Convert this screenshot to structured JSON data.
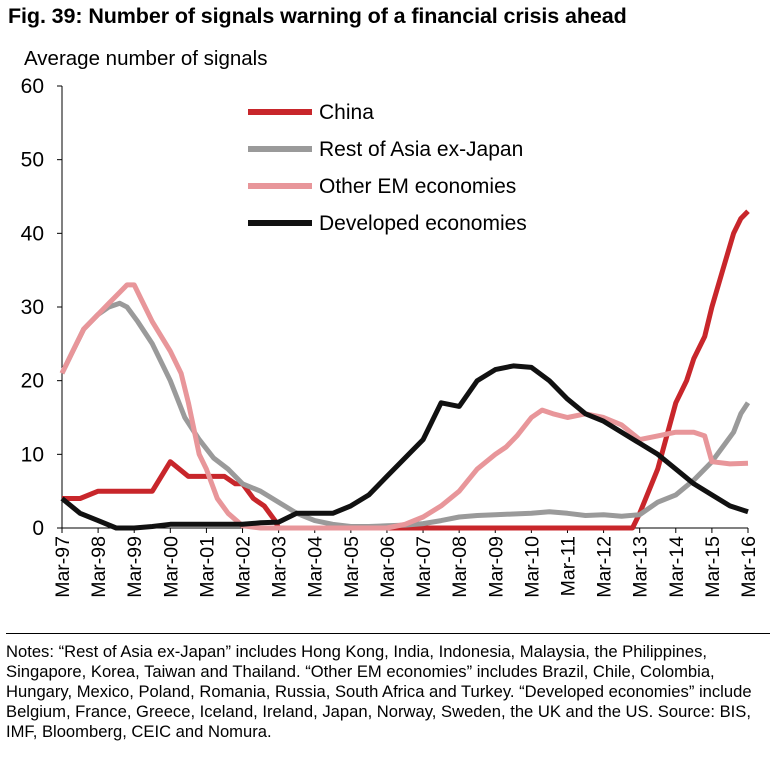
{
  "title": "Fig. 39: Number of signals warning of a financial crisis ahead",
  "notes": "Notes: “Rest of Asia ex-Japan” includes Hong Kong, India, Indonesia, Malaysia, the Philippines, Singapore, Korea, Taiwan and Thailand. “Other EM economies” includes Brazil, Chile, Colombia, Hungary, Mexico, Poland, Romania, Russia, South Africa and Turkey. “Developed economies” include Belgium, France, Greece, Iceland, Ireland, Japan, Norway, Sweden, the UK and the US. Source: BIS, IMF, Bloomberg, CEIC and Nomura.",
  "chart_data": {
    "type": "line",
    "title": "Fig. 39: Number of signals warning of a financial crisis ahead",
    "ylabel": "Average number of signals",
    "xlabel": "",
    "ylim": [
      0,
      60
    ],
    "yticks": [
      0,
      10,
      20,
      30,
      40,
      50,
      60
    ],
    "xlim": [
      1997,
      2016
    ],
    "categories": [
      "Mar-97",
      "Mar-98",
      "Mar-99",
      "Mar-00",
      "Mar-01",
      "Mar-02",
      "Mar-03",
      "Mar-04",
      "Mar-05",
      "Mar-06",
      "Mar-07",
      "Mar-08",
      "Mar-09",
      "Mar-10",
      "Mar-11",
      "Mar-12",
      "Mar-13",
      "Mar-14",
      "Mar-15",
      "Mar-16"
    ],
    "legend_position": "top-center",
    "series": [
      {
        "name": "China",
        "color": "#c8262b",
        "points": [
          [
            1997,
            4
          ],
          [
            1997.5,
            4
          ],
          [
            1998,
            5
          ],
          [
            1999,
            5
          ],
          [
            1999.5,
            5
          ],
          [
            2000,
            9
          ],
          [
            2000.5,
            7
          ],
          [
            2001,
            7
          ],
          [
            2001.5,
            7
          ],
          [
            2001.8,
            6
          ],
          [
            2002,
            6
          ],
          [
            2002.3,
            4
          ],
          [
            2002.6,
            3
          ],
          [
            2002.9,
            1
          ],
          [
            2003,
            0
          ],
          [
            2012.8,
            0
          ],
          [
            2013,
            2
          ],
          [
            2013.5,
            8
          ],
          [
            2014,
            17
          ],
          [
            2014.3,
            20
          ],
          [
            2014.5,
            23
          ],
          [
            2014.8,
            26
          ],
          [
            2015,
            30
          ],
          [
            2015.3,
            35
          ],
          [
            2015.6,
            40
          ],
          [
            2015.8,
            42
          ],
          [
            2016,
            43
          ]
        ]
      },
      {
        "name": "Rest of Asia ex-Japan",
        "color": "#9a9a9a",
        "points": [
          [
            1997,
            21
          ],
          [
            1997.3,
            24
          ],
          [
            1997.6,
            27
          ],
          [
            1998,
            29
          ],
          [
            1998.3,
            30
          ],
          [
            1998.6,
            30.5
          ],
          [
            1998.8,
            30
          ],
          [
            1999.1,
            28
          ],
          [
            1999.5,
            25
          ],
          [
            2000,
            20
          ],
          [
            2000.4,
            15
          ],
          [
            2000.8,
            12
          ],
          [
            2001.2,
            9.5
          ],
          [
            2001.6,
            8
          ],
          [
            2002,
            6
          ],
          [
            2002.5,
            5
          ],
          [
            2003,
            3.5
          ],
          [
            2003.5,
            2
          ],
          [
            2004,
            1
          ],
          [
            2004.5,
            0.5
          ],
          [
            2005,
            0.2
          ],
          [
            2005.5,
            0.2
          ],
          [
            2006,
            0.3
          ],
          [
            2006.5,
            0.4
          ],
          [
            2007,
            0.6
          ],
          [
            2007.5,
            1
          ],
          [
            2008,
            1.5
          ],
          [
            2008.5,
            1.7
          ],
          [
            2009,
            1.8
          ],
          [
            2009.5,
            1.9
          ],
          [
            2010,
            2
          ],
          [
            2010.5,
            2.2
          ],
          [
            2011,
            2
          ],
          [
            2011.5,
            1.7
          ],
          [
            2012,
            1.8
          ],
          [
            2012.5,
            1.6
          ],
          [
            2013,
            1.8
          ],
          [
            2013.5,
            3.5
          ],
          [
            2014,
            4.5
          ],
          [
            2014.5,
            6.5
          ],
          [
            2015,
            9
          ],
          [
            2015.3,
            11
          ],
          [
            2015.6,
            13
          ],
          [
            2015.8,
            15.5
          ],
          [
            2016,
            17
          ]
        ]
      },
      {
        "name": "Other EM economies",
        "color": "#e8969a",
        "points": [
          [
            1997,
            21
          ],
          [
            1997.3,
            24
          ],
          [
            1997.6,
            27
          ],
          [
            1998,
            29
          ],
          [
            1998.3,
            30.5
          ],
          [
            1998.6,
            32
          ],
          [
            1998.8,
            33
          ],
          [
            1999,
            33
          ],
          [
            1999.2,
            31
          ],
          [
            1999.5,
            28
          ],
          [
            2000,
            24
          ],
          [
            2000.3,
            21
          ],
          [
            2000.5,
            17
          ],
          [
            2000.8,
            10
          ],
          [
            2001,
            8
          ],
          [
            2001.3,
            4
          ],
          [
            2001.6,
            2
          ],
          [
            2002,
            0.3
          ],
          [
            2002.5,
            0
          ],
          [
            2006,
            0
          ],
          [
            2006.5,
            0.5
          ],
          [
            2007,
            1.5
          ],
          [
            2007.5,
            3
          ],
          [
            2008,
            5
          ],
          [
            2008.5,
            8
          ],
          [
            2009,
            10
          ],
          [
            2009.3,
            11
          ],
          [
            2009.6,
            12.5
          ],
          [
            2010,
            15
          ],
          [
            2010.3,
            16
          ],
          [
            2010.6,
            15.5
          ],
          [
            2011,
            15
          ],
          [
            2011.5,
            15.5
          ],
          [
            2012,
            15
          ],
          [
            2012.5,
            14
          ],
          [
            2013,
            12
          ],
          [
            2013.5,
            12.5
          ],
          [
            2014,
            13
          ],
          [
            2014.5,
            13
          ],
          [
            2014.8,
            12.5
          ],
          [
            2015,
            9
          ],
          [
            2015.5,
            8.7
          ],
          [
            2016,
            8.8
          ]
        ]
      },
      {
        "name": "Developed economies",
        "color": "#111111",
        "points": [
          [
            1997,
            4
          ],
          [
            1997.5,
            2
          ],
          [
            1998,
            1
          ],
          [
            1998.5,
            0
          ],
          [
            1999,
            0
          ],
          [
            1999.5,
            0.2
          ],
          [
            2000,
            0.5
          ],
          [
            2001,
            0.5
          ],
          [
            2002,
            0.5
          ],
          [
            2002.5,
            0.7
          ],
          [
            2003,
            0.8
          ],
          [
            2003.5,
            2
          ],
          [
            2004,
            2
          ],
          [
            2004.5,
            2
          ],
          [
            2005,
            3
          ],
          [
            2005.5,
            4.5
          ],
          [
            2006,
            7
          ],
          [
            2006.5,
            9.5
          ],
          [
            2007,
            12
          ],
          [
            2007.5,
            17
          ],
          [
            2008,
            16.5
          ],
          [
            2008.5,
            20
          ],
          [
            2009,
            21.5
          ],
          [
            2009.5,
            22
          ],
          [
            2010,
            21.8
          ],
          [
            2010.5,
            20
          ],
          [
            2011,
            17.5
          ],
          [
            2011.5,
            15.5
          ],
          [
            2012,
            14.5
          ],
          [
            2012.5,
            13
          ],
          [
            2013,
            11.5
          ],
          [
            2013.5,
            10
          ],
          [
            2014,
            8
          ],
          [
            2014.5,
            6
          ],
          [
            2015,
            4.5
          ],
          [
            2015.5,
            3
          ],
          [
            2016,
            2.2
          ]
        ]
      }
    ]
  }
}
